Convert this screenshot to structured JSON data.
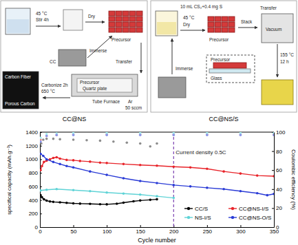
{
  "diagram": {
    "panels": [
      {
        "caption": "CC@NS",
        "labels": [
          "45 °C",
          "Stir 4h",
          "Dry",
          "Immerse",
          "Precursor",
          "CC",
          "Transfer",
          "Precursor",
          "Quartz plate",
          "Tube Furnace",
          "Carbonize 2h",
          "650 °C",
          "Ar",
          "50 sccm",
          "Carbon Fiber",
          "Porous Carbon"
        ]
      },
      {
        "caption": "CC@NS/S",
        "labels": [
          "10 mL CS₂+0.4 mg S",
          "45 °C",
          "Dry",
          "Precursor",
          "Stack",
          "Transfer",
          "Vacuum",
          "155 °C",
          "12 h",
          "Precursor",
          "Glass",
          "Immerse"
        ]
      }
    ]
  },
  "chart_data": {
    "type": "line",
    "x_label": "Cycle number",
    "y_label": "specifical capacity (mAh.g⁻¹)",
    "y2_label": "Coulombic efficiency (%)",
    "xlim": [
      0,
      350
    ],
    "xticks": [
      0,
      50,
      100,
      150,
      200,
      250,
      300,
      350
    ],
    "ylim": [
      0,
      1400
    ],
    "yticks": [
      0,
      200,
      400,
      600,
      800,
      1000,
      1200,
      1400
    ],
    "y2lim": [
      0,
      100
    ],
    "y2ticks": [
      0,
      20,
      40,
      60,
      80,
      100
    ],
    "grid": false,
    "legend": "lower right",
    "annotations": [
      {
        "x": 200,
        "text": "Current density 0.5C"
      }
    ],
    "series": [
      {
        "name": "CC/S",
        "color": "#000000",
        "marker": "circle",
        "line_style": "solid",
        "x": [
          1,
          3,
          6,
          10,
          15,
          20,
          30,
          40,
          50,
          60,
          75,
          90,
          100,
          115,
          125,
          140,
          150,
          165,
          175
        ],
        "values": [
          470,
          440,
          410,
          390,
          378,
          372,
          365,
          358,
          350,
          346,
          342,
          338,
          336,
          345,
          360,
          380,
          392,
          402,
          410
        ]
      },
      {
        "name": "CC@NS-I/S",
        "color": "#e8242a",
        "marker": "circle",
        "line_style": "solid",
        "x": [
          1,
          3,
          6,
          10,
          15,
          20,
          25,
          30,
          40,
          50,
          60,
          75,
          90,
          100,
          125,
          150,
          175,
          200,
          225,
          250,
          275,
          300,
          325,
          350
        ],
        "values": [
          840,
          900,
          960,
          980,
          1000,
          1020,
          1030,
          1010,
          990,
          985,
          975,
          965,
          950,
          945,
          930,
          915,
          905,
          890,
          880,
          860,
          820,
          790,
          760,
          750
        ]
      },
      {
        "name": "NS-I/S",
        "color": "#5fd3d6",
        "marker": "circle",
        "line_style": "solid",
        "x": [
          1,
          10,
          25,
          50,
          75,
          100,
          125,
          150,
          175,
          200
        ],
        "values": [
          540,
          550,
          560,
          545,
          530,
          510,
          495,
          480,
          455,
          430
        ]
      },
      {
        "name": "CC@NS-O/S",
        "color": "#2a3bd6",
        "marker": "circle",
        "line_style": "solid",
        "x": [
          1,
          5,
          10,
          20,
          30,
          40,
          50,
          75,
          100,
          125,
          150,
          175,
          200,
          225,
          250,
          275,
          300,
          325,
          340,
          350
        ],
        "values": [
          1080,
          1050,
          1000,
          960,
          930,
          900,
          880,
          820,
          770,
          720,
          680,
          650,
          620,
          600,
          580,
          560,
          530,
          500,
          470,
          490
        ]
      },
      {
        "color": "#8c8c8c",
        "axis": "y2",
        "marker": "circle",
        "line_style": "none",
        "x": [
          2,
          5,
          10,
          20,
          30,
          50,
          70,
          90,
          110,
          130,
          150,
          165,
          175
        ],
        "values": [
          88,
          92,
          93,
          93,
          92.5,
          92,
          91.5,
          91,
          90,
          89,
          88,
          85,
          88
        ]
      },
      {
        "color": "#f08a8a",
        "axis": "y2",
        "marker": "circle",
        "line_style": "none",
        "x": [
          1,
          10,
          25,
          50,
          100,
          150,
          200,
          250,
          300,
          350
        ],
        "values": [
          92,
          96,
          97,
          97.5,
          97.5,
          97.5,
          97.5,
          97.5,
          97.5,
          97.5
        ]
      },
      {
        "color": "#a8eef0",
        "axis": "y2",
        "marker": "circle",
        "line_style": "none",
        "x": [
          1,
          10,
          25,
          50,
          100,
          150,
          200,
          250,
          300,
          350
        ],
        "values": [
          94,
          98,
          98.5,
          99,
          99,
          99,
          99,
          99,
          99,
          99
        ]
      },
      {
        "color": "#8a96ea",
        "axis": "y2",
        "marker": "circle",
        "line_style": "none",
        "x": [
          1,
          10,
          25,
          50,
          100,
          150,
          200,
          250,
          300,
          350
        ],
        "values": [
          90,
          96,
          97,
          97,
          97,
          97,
          97,
          97,
          97,
          97
        ]
      }
    ]
  }
}
